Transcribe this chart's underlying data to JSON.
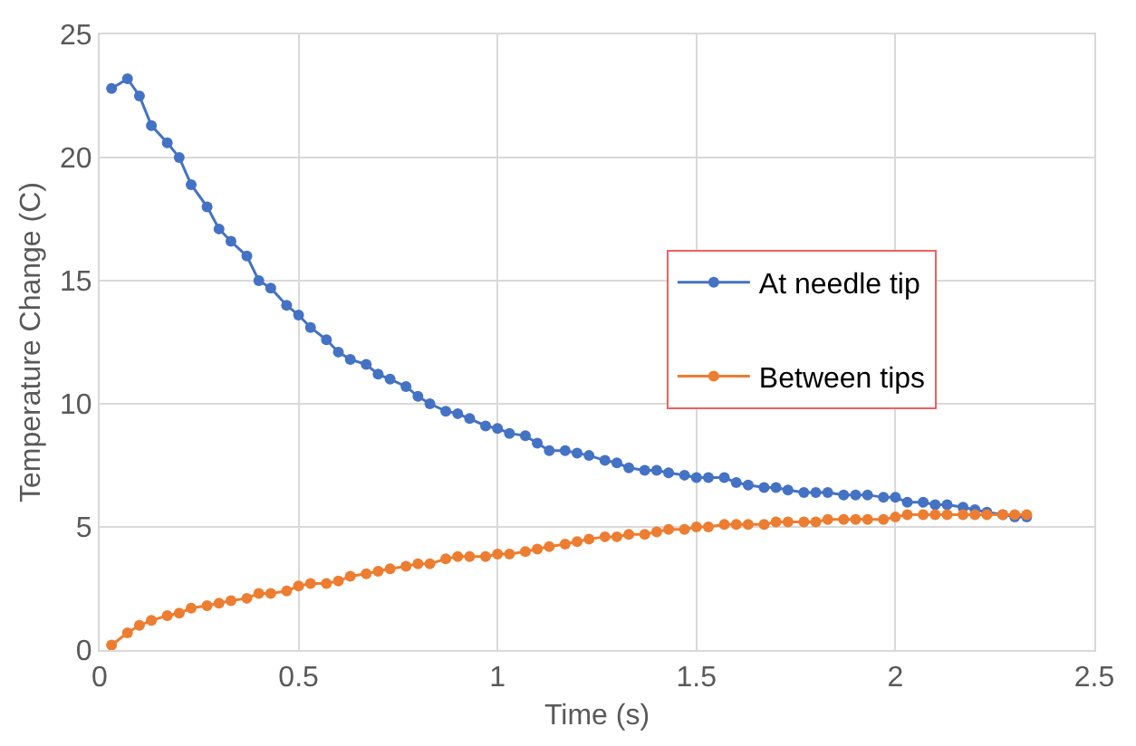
{
  "chart_data": {
    "type": "line",
    "xlabel": "Time (s)",
    "ylabel": "Temperature Change (C)",
    "x": [
      0.03,
      0.07,
      0.1,
      0.13,
      0.17,
      0.2,
      0.23,
      0.27,
      0.3,
      0.33,
      0.37,
      0.4,
      0.43,
      0.47,
      0.5,
      0.53,
      0.57,
      0.6,
      0.63,
      0.67,
      0.7,
      0.73,
      0.77,
      0.8,
      0.83,
      0.87,
      0.9,
      0.93,
      0.97,
      1,
      1.03,
      1.07,
      1.1,
      1.13,
      1.17,
      1.2,
      1.23,
      1.27,
      1.3,
      1.33,
      1.37,
      1.4,
      1.43,
      1.47,
      1.5,
      1.53,
      1.57,
      1.6,
      1.63,
      1.67,
      1.7,
      1.73,
      1.77,
      1.8,
      1.83,
      1.87,
      1.9,
      1.93,
      1.97,
      2,
      2.03,
      2.07,
      2.1,
      2.13,
      2.17,
      2.2,
      2.23,
      2.27,
      2.3,
      2.33
    ],
    "series": [
      {
        "name": "At needle tip",
        "color": "#4472c4",
        "values": [
          22.8,
          23.2,
          22.5,
          21.3,
          20.6,
          20,
          18.9,
          18,
          17.1,
          16.6,
          16,
          15,
          14.7,
          14,
          13.6,
          13.1,
          12.6,
          12.1,
          11.8,
          11.6,
          11.2,
          11,
          10.7,
          10.3,
          10,
          9.7,
          9.6,
          9.4,
          9.1,
          9,
          8.8,
          8.7,
          8.4,
          8.1,
          8.1,
          8,
          7.9,
          7.7,
          7.6,
          7.4,
          7.3,
          7.3,
          7.2,
          7.1,
          7,
          7,
          7,
          6.8,
          6.7,
          6.6,
          6.6,
          6.5,
          6.4,
          6.4,
          6.4,
          6.3,
          6.3,
          6.3,
          6.2,
          6.2,
          6,
          6,
          5.9,
          5.9,
          5.8,
          5.7,
          5.6,
          5.5,
          5.4,
          5.4
        ]
      },
      {
        "name": "Between tips",
        "color": "#ed7d31",
        "values": [
          0.2,
          0.7,
          1,
          1.2,
          1.4,
          1.5,
          1.7,
          1.8,
          1.9,
          2,
          2.1,
          2.3,
          2.3,
          2.4,
          2.6,
          2.7,
          2.7,
          2.8,
          3,
          3.1,
          3.2,
          3.3,
          3.4,
          3.5,
          3.5,
          3.7,
          3.8,
          3.8,
          3.8,
          3.9,
          3.9,
          4,
          4.1,
          4.2,
          4.3,
          4.4,
          4.5,
          4.6,
          4.6,
          4.7,
          4.7,
          4.8,
          4.9,
          4.9,
          5,
          5,
          5.1,
          5.1,
          5.1,
          5.1,
          5.2,
          5.2,
          5.2,
          5.2,
          5.3,
          5.3,
          5.3,
          5.3,
          5.3,
          5.4,
          5.5,
          5.5,
          5.5,
          5.5,
          5.5,
          5.5,
          5.5,
          5.5,
          5.5,
          5.5
        ]
      }
    ],
    "xlim": [
      0,
      2.5
    ],
    "xticks": [
      0,
      0.5,
      1,
      1.5,
      2,
      2.5
    ],
    "ylim": [
      0,
      25
    ],
    "yticks": [
      0,
      5,
      10,
      15,
      20,
      25
    ],
    "grid": true,
    "legend": "right",
    "marker": "circle",
    "line_style": "solid"
  }
}
